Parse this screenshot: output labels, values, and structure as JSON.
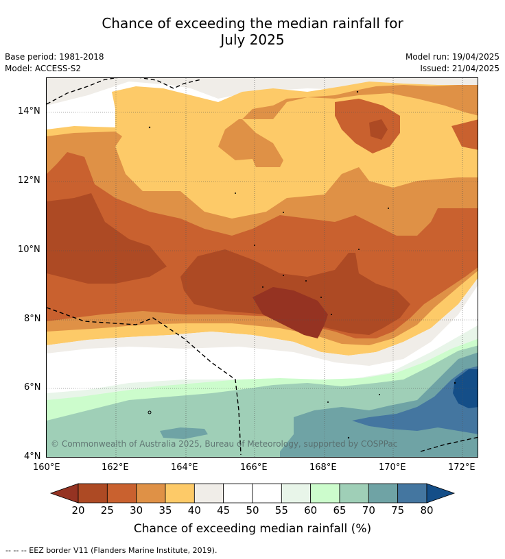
{
  "title": {
    "line1": "Chance of exceeding the median rainfall for",
    "line2": "July 2025"
  },
  "meta": {
    "base_period": "Base period: 1981-2018",
    "model": "Model: ACCESS-S2",
    "model_run": "Model run: 19/04/2025",
    "issued": "Issued: 21/04/2025"
  },
  "map": {
    "lat_labels": [
      "14°N",
      "12°N",
      "10°N",
      "8°N",
      "6°N",
      "4°N"
    ],
    "lon_labels": [
      "160°E",
      "162°E",
      "164°E",
      "166°E",
      "168°E",
      "170°E",
      "172°E"
    ],
    "copyright": "© Commonwealth of Australia 2025, Bureau of Meteorology, supported by COSPPac"
  },
  "colorbar": {
    "ticks": [
      "20",
      "25",
      "30",
      "35",
      "40",
      "45",
      "50",
      "55",
      "60",
      "65",
      "70",
      "75",
      "80"
    ],
    "colors": [
      "#ad4a24",
      "#c9612f",
      "#df9146",
      "#fdca68",
      "#f0ede8",
      "#ffffff",
      "#ffffff",
      "#e8f5e9",
      "#ccfccc",
      "#9fcfb7",
      "#6fa3a5",
      "#4476a0"
    ],
    "low_color": "#953322",
    "high_color": "#144e88",
    "title": "Chance of exceeding median rainfall (%)"
  },
  "footnote": "--  --  -- EEZ border V11 (Flanders Marine Institute, 2019)."
}
